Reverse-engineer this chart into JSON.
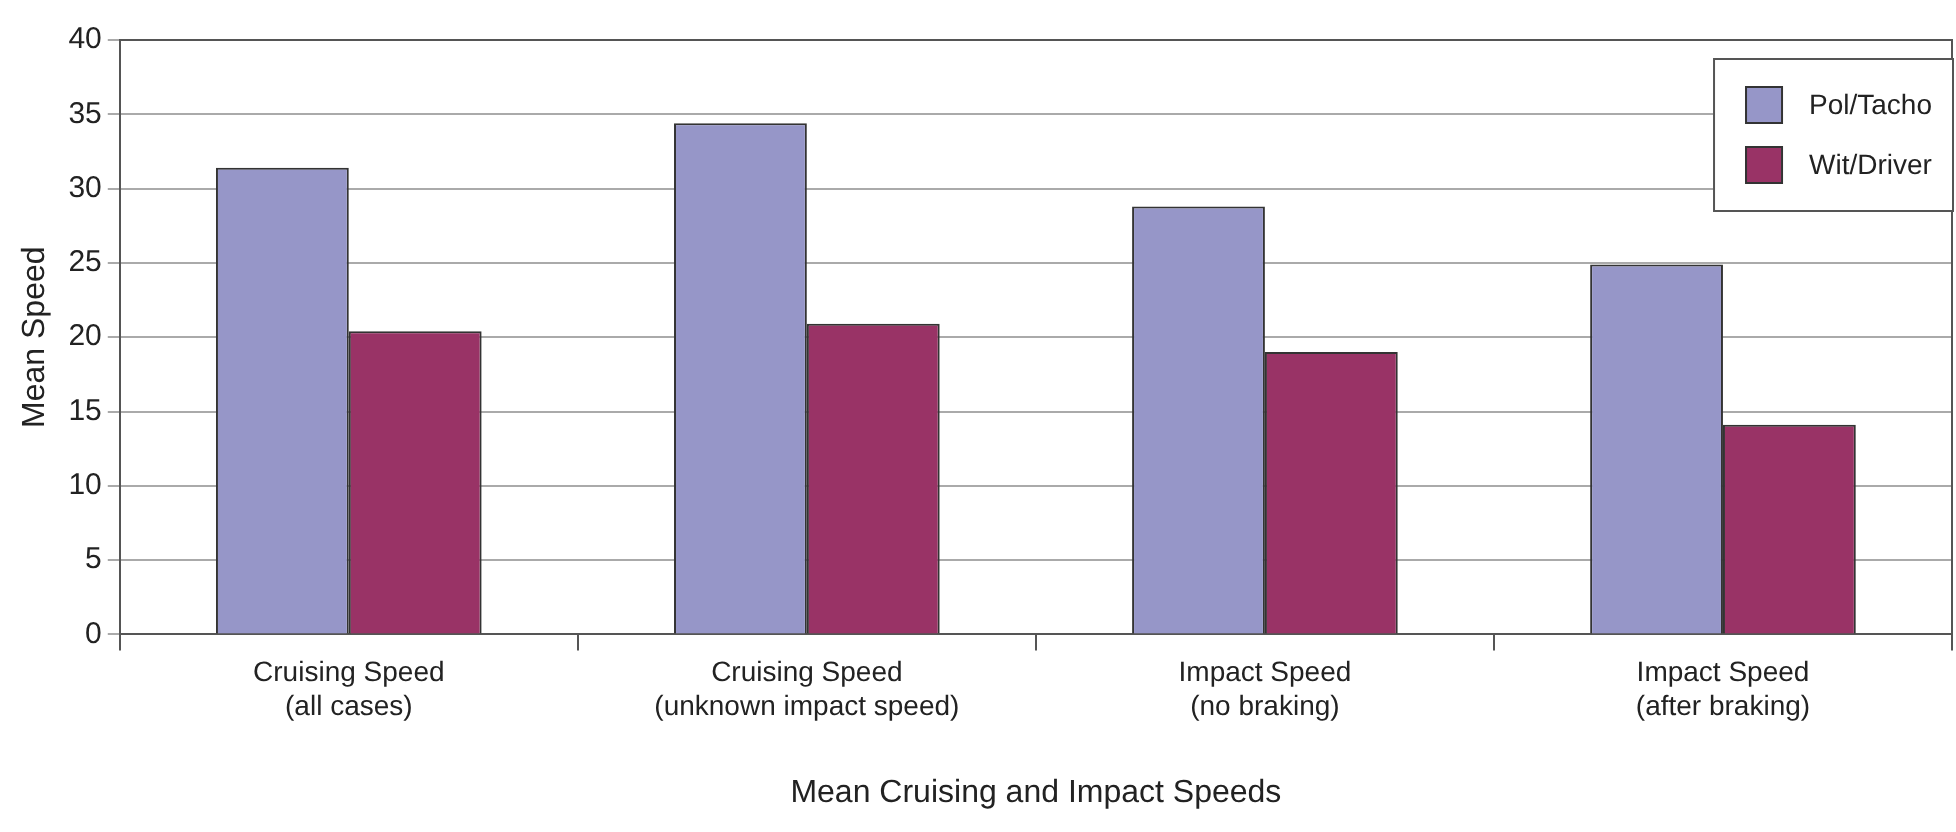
{
  "chart_data": {
    "type": "bar",
    "xlabel": "Mean Cruising and Impact Speeds",
    "ylabel": "Mean Speed",
    "categories": [
      "Cruising Speed\n(all cases)",
      "Cruising Speed\n(unknown impact speed)",
      "Impact Speed\n(no braking)",
      "Impact Speed\n(after braking)"
    ],
    "series": [
      {
        "name": "Pol/Tacho",
        "color": "#9696c8",
        "values": [
          31.4,
          34.4,
          28.8,
          24.9
        ]
      },
      {
        "name": "Wit/Driver",
        "color": "#993366",
        "values": [
          20.4,
          20.9,
          19.0,
          14.1
        ]
      }
    ],
    "ylim": [
      0,
      40
    ],
    "yticks": [
      0,
      5,
      10,
      15,
      20,
      25,
      30,
      35,
      40
    ],
    "grid": "y",
    "legend": "top right"
  }
}
